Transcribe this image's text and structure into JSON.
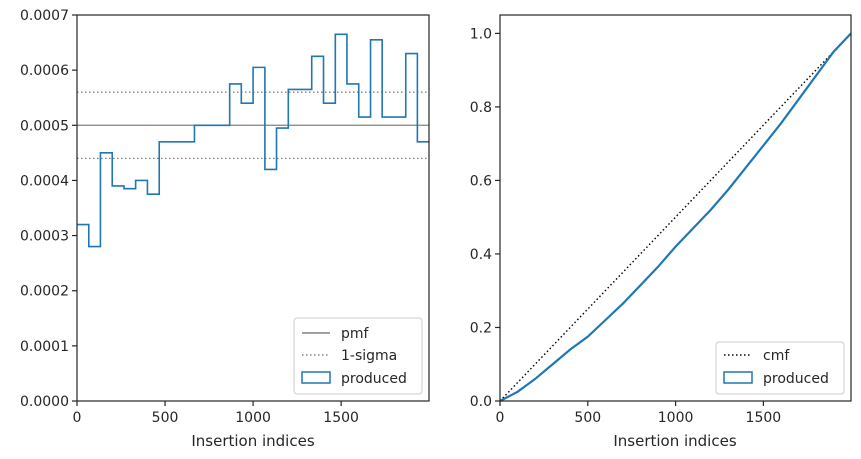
{
  "chart_data": [
    {
      "type": "line",
      "xlabel": "Insertion indices",
      "ylabel": "",
      "xlim": [
        0,
        1999
      ],
      "ylim": [
        0,
        0.0007
      ],
      "xticks": [
        0,
        500,
        1000,
        1500
      ],
      "yticks": [
        0,
        0.0001,
        0.0002,
        0.0003,
        0.0004,
        0.0005,
        0.0006,
        0.0007
      ],
      "ytick_labels": [
        "0.0000",
        "0.0001",
        "0.0002",
        "0.0003",
        "0.0004",
        "0.0005",
        "0.0006",
        "0.0007"
      ],
      "legend_position": "bottom-right",
      "grid": false,
      "series": [
        {
          "name": "pmf",
          "style": "solid",
          "color": "#808080",
          "values": [
            0.0005
          ]
        },
        {
          "name": "1-sigma",
          "style": "dotted",
          "color": "#808080",
          "values": [
            0.00056,
            0.00044
          ]
        },
        {
          "name": "produced",
          "style": "step",
          "color": "#1f77b4",
          "bin_edges": [
            0,
            67,
            133,
            200,
            267,
            333,
            400,
            467,
            533,
            600,
            667,
            733,
            800,
            867,
            933,
            1000,
            1067,
            1133,
            1200,
            1267,
            1333,
            1400,
            1467,
            1533,
            1600,
            1667,
            1733,
            1800,
            1867,
            1933,
            1999
          ],
          "values": [
            0.00032,
            0.00028,
            0.00045,
            0.00039,
            0.000385,
            0.0004,
            0.000375,
            0.00047,
            0.00047,
            0.00047,
            0.0005,
            0.0005,
            0.0005,
            0.000575,
            0.00054,
            0.000605,
            0.00042,
            0.000495,
            0.000565,
            0.000565,
            0.000625,
            0.00054,
            0.000665,
            0.000575,
            0.000515,
            0.000655,
            0.000515,
            0.000515,
            0.00063,
            0.00047
          ]
        }
      ]
    },
    {
      "type": "line",
      "xlabel": "Insertion indices",
      "ylabel": "",
      "xlim": [
        0,
        1999
      ],
      "ylim": [
        0,
        1.05
      ],
      "xticks": [
        0,
        500,
        1000,
        1500
      ],
      "yticks": [
        0,
        0.2,
        0.4,
        0.6,
        0.8,
        1.0
      ],
      "ytick_labels": [
        "0.0",
        "0.2",
        "0.4",
        "0.6",
        "0.8",
        "1.0"
      ],
      "legend_position": "bottom-right",
      "grid": false,
      "series": [
        {
          "name": "cmf",
          "style": "dotted",
          "color": "#000000",
          "x": [
            0,
            1999
          ],
          "values": [
            0,
            1.0
          ]
        },
        {
          "name": "produced",
          "style": "solid",
          "color": "#1f77b4",
          "x": [
            0,
            100,
            200,
            300,
            400,
            500,
            600,
            700,
            800,
            900,
            1000,
            1100,
            1200,
            1300,
            1400,
            1500,
            1600,
            1700,
            1800,
            1900,
            1999
          ],
          "values": [
            0,
            0.025,
            0.06,
            0.1,
            0.14,
            0.175,
            0.22,
            0.265,
            0.315,
            0.365,
            0.42,
            0.47,
            0.52,
            0.575,
            0.635,
            0.695,
            0.755,
            0.82,
            0.885,
            0.95,
            1.0
          ]
        }
      ]
    }
  ]
}
